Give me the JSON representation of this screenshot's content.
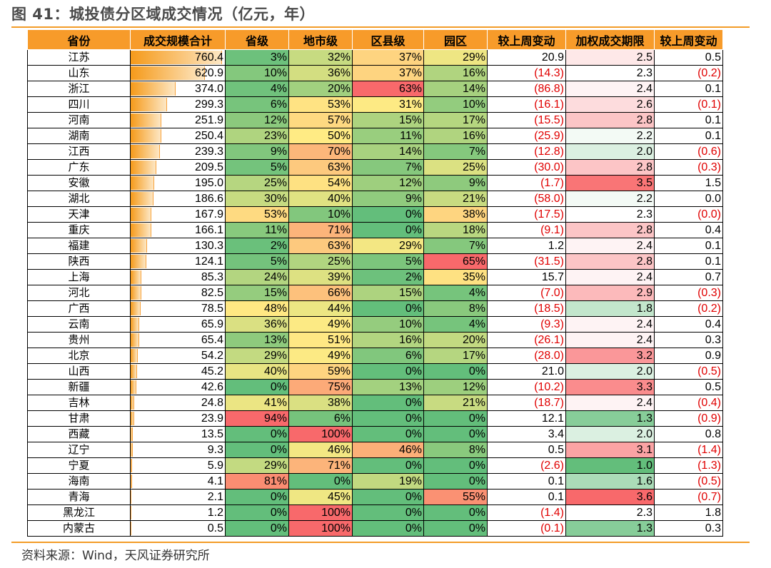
{
  "title": "图 41：城投债分区域成交情况（亿元，年）",
  "source": "资料来源：Wind，天风证券研究所",
  "colors": {
    "header_bg": "#f79b2a",
    "bar_start": "#f59a1a",
    "negative_text": "#e00000",
    "heat_low": "#63be7b",
    "heat_mid": "#ffeb84",
    "heat_high": "#f8696b"
  },
  "chart_data": {
    "type": "table",
    "columns": [
      "省份",
      "成交规模合计",
      "省级",
      "地市级",
      "区县级",
      "园区",
      "较上周变动",
      "加权成交期限",
      "较上周变动"
    ],
    "rows": [
      {
        "province": "江苏",
        "total": "760.4",
        "prov_lvl": "3%",
        "city": "32%",
        "county": "37%",
        "park": "29%",
        "vol_chg": "20.9",
        "term": "2.5",
        "term_chg": "0.5"
      },
      {
        "province": "山东",
        "total": "620.9",
        "prov_lvl": "10%",
        "city": "36%",
        "county": "37%",
        "park": "16%",
        "vol_chg": "(14.3)",
        "term": "2.3",
        "term_chg": "(0.2)"
      },
      {
        "province": "浙江",
        "total": "374.0",
        "prov_lvl": "4%",
        "city": "20%",
        "county": "63%",
        "park": "14%",
        "vol_chg": "(86.8)",
        "term": "2.4",
        "term_chg": "0.1"
      },
      {
        "province": "四川",
        "total": "299.3",
        "prov_lvl": "6%",
        "city": "53%",
        "county": "31%",
        "park": "10%",
        "vol_chg": "(16.1)",
        "term": "2.6",
        "term_chg": "(0.1)"
      },
      {
        "province": "河南",
        "total": "251.9",
        "prov_lvl": "12%",
        "city": "57%",
        "county": "15%",
        "park": "17%",
        "vol_chg": "(15.5)",
        "term": "2.8",
        "term_chg": "0.1"
      },
      {
        "province": "湖南",
        "total": "250.4",
        "prov_lvl": "23%",
        "city": "50%",
        "county": "11%",
        "park": "16%",
        "vol_chg": "(25.9)",
        "term": "2.2",
        "term_chg": "0.1"
      },
      {
        "province": "江西",
        "total": "239.3",
        "prov_lvl": "9%",
        "city": "70%",
        "county": "14%",
        "park": "7%",
        "vol_chg": "(12.8)",
        "term": "2.0",
        "term_chg": "(0.6)"
      },
      {
        "province": "广东",
        "total": "209.5",
        "prov_lvl": "5%",
        "city": "63%",
        "county": "7%",
        "park": "25%",
        "vol_chg": "(30.0)",
        "term": "2.8",
        "term_chg": "(0.3)"
      },
      {
        "province": "安徽",
        "total": "195.0",
        "prov_lvl": "25%",
        "city": "54%",
        "county": "12%",
        "park": "9%",
        "vol_chg": "(1.7)",
        "term": "3.5",
        "term_chg": "1.5"
      },
      {
        "province": "湖北",
        "total": "186.6",
        "prov_lvl": "30%",
        "city": "40%",
        "county": "9%",
        "park": "21%",
        "vol_chg": "(58.0)",
        "term": "2.2",
        "term_chg": "0.0"
      },
      {
        "province": "天津",
        "total": "167.9",
        "prov_lvl": "53%",
        "city": "10%",
        "county": "0%",
        "park": "38%",
        "vol_chg": "(17.5)",
        "term": "2.3",
        "term_chg": "(0.0)"
      },
      {
        "province": "重庆",
        "total": "166.1",
        "prov_lvl": "11%",
        "city": "71%",
        "county": "0%",
        "park": "18%",
        "vol_chg": "(9.1)",
        "term": "2.8",
        "term_chg": "0.4"
      },
      {
        "province": "福建",
        "total": "130.3",
        "prov_lvl": "2%",
        "city": "63%",
        "county": "29%",
        "park": "7%",
        "vol_chg": "1.2",
        "term": "2.4",
        "term_chg": "0.1"
      },
      {
        "province": "陕西",
        "total": "124.1",
        "prov_lvl": "5%",
        "city": "25%",
        "county": "5%",
        "park": "65%",
        "vol_chg": "(31.5)",
        "term": "2.8",
        "term_chg": "0.1"
      },
      {
        "province": "上海",
        "total": "85.3",
        "prov_lvl": "24%",
        "city": "39%",
        "county": "2%",
        "park": "35%",
        "vol_chg": "15.7",
        "term": "2.4",
        "term_chg": "0.7"
      },
      {
        "province": "河北",
        "total": "82.5",
        "prov_lvl": "15%",
        "city": "66%",
        "county": "15%",
        "park": "4%",
        "vol_chg": "(7.0)",
        "term": "2.9",
        "term_chg": "(0.3)"
      },
      {
        "province": "广西",
        "total": "78.5",
        "prov_lvl": "48%",
        "city": "44%",
        "county": "0%",
        "park": "8%",
        "vol_chg": "(18.5)",
        "term": "1.8",
        "term_chg": "(0.2)"
      },
      {
        "province": "云南",
        "total": "65.9",
        "prov_lvl": "36%",
        "city": "49%",
        "county": "10%",
        "park": "4%",
        "vol_chg": "(9.3)",
        "term": "2.4",
        "term_chg": "0.4"
      },
      {
        "province": "贵州",
        "total": "65.4",
        "prov_lvl": "13%",
        "city": "51%",
        "county": "16%",
        "park": "20%",
        "vol_chg": "(26.1)",
        "term": "2.4",
        "term_chg": "0.3"
      },
      {
        "province": "北京",
        "total": "54.2",
        "prov_lvl": "29%",
        "city": "49%",
        "county": "6%",
        "park": "17%",
        "vol_chg": "(28.0)",
        "term": "3.2",
        "term_chg": "0.9"
      },
      {
        "province": "山西",
        "total": "45.2",
        "prov_lvl": "40%",
        "city": "59%",
        "county": "0%",
        "park": "0%",
        "vol_chg": "21.0",
        "term": "2.0",
        "term_chg": "(0.5)"
      },
      {
        "province": "新疆",
        "total": "42.6",
        "prov_lvl": "0%",
        "city": "75%",
        "county": "13%",
        "park": "12%",
        "vol_chg": "(10.2)",
        "term": "3.3",
        "term_chg": "0.5"
      },
      {
        "province": "吉林",
        "total": "24.8",
        "prov_lvl": "41%",
        "city": "38%",
        "county": "0%",
        "park": "21%",
        "vol_chg": "(18.7)",
        "term": "2.4",
        "term_chg": "(0.4)"
      },
      {
        "province": "甘肃",
        "total": "23.9",
        "prov_lvl": "94%",
        "city": "6%",
        "county": "0%",
        "park": "0%",
        "vol_chg": "12.1",
        "term": "1.3",
        "term_chg": "(0.9)"
      },
      {
        "province": "西藏",
        "total": "13.5",
        "prov_lvl": "0%",
        "city": "100%",
        "county": "0%",
        "park": "0%",
        "vol_chg": "3.4",
        "term": "2.0",
        "term_chg": "0.8"
      },
      {
        "province": "辽宁",
        "total": "9.3",
        "prov_lvl": "0%",
        "city": "46%",
        "county": "46%",
        "park": "8%",
        "vol_chg": "0.5",
        "term": "3.1",
        "term_chg": "(1.4)"
      },
      {
        "province": "宁夏",
        "total": "5.9",
        "prov_lvl": "29%",
        "city": "71%",
        "county": "0%",
        "park": "0%",
        "vol_chg": "(2.6)",
        "term": "1.0",
        "term_chg": "(1.3)"
      },
      {
        "province": "海南",
        "total": "4.1",
        "prov_lvl": "81%",
        "city": "0%",
        "county": "19%",
        "park": "0%",
        "vol_chg": "0.1",
        "term": "1.6",
        "term_chg": "(0.5)"
      },
      {
        "province": "青海",
        "total": "2.1",
        "prov_lvl": "0%",
        "city": "45%",
        "county": "0%",
        "park": "55%",
        "vol_chg": "0.1",
        "term": "3.6",
        "term_chg": "(0.7)"
      },
      {
        "province": "黑龙江",
        "total": "1.2",
        "prov_lvl": "0%",
        "city": "100%",
        "county": "0%",
        "park": "0%",
        "vol_chg": "(1.4)",
        "term": "2.3",
        "term_chg": "1.8"
      },
      {
        "province": "内蒙古",
        "total": "0.5",
        "prov_lvl": "0%",
        "city": "100%",
        "county": "0%",
        "park": "0%",
        "vol_chg": "(0.1)",
        "term": "1.3",
        "term_chg": "0.3"
      }
    ]
  }
}
